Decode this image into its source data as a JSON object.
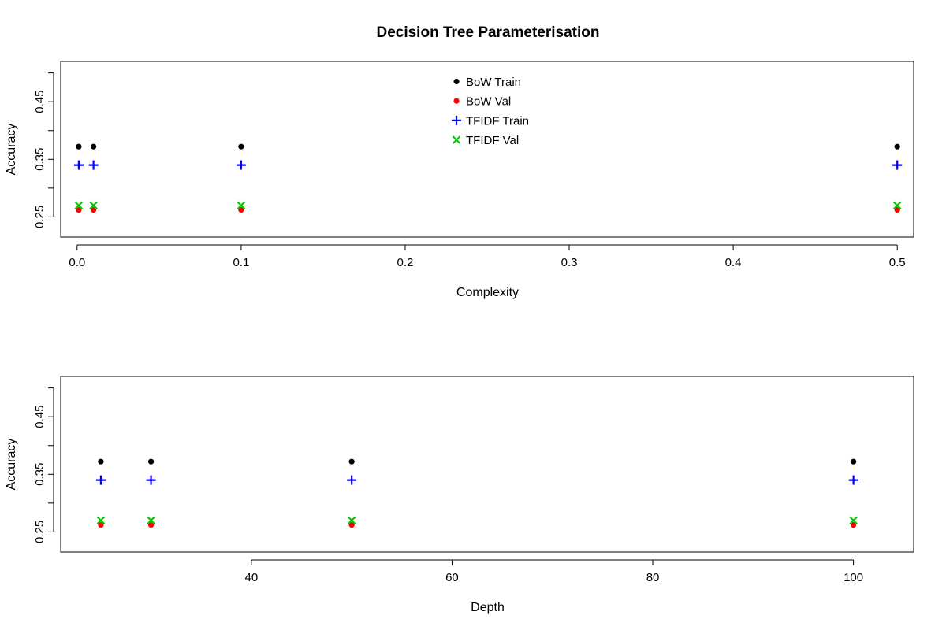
{
  "figure_title": "Decision Tree Parameterisation",
  "chart_data": [
    {
      "type": "scatter",
      "xlabel": "Complexity",
      "ylabel": "Accuracy",
      "xlim": [
        -0.01,
        0.51
      ],
      "ylim": [
        0.215,
        0.52
      ],
      "xticks": [
        0.0,
        0.1,
        0.2,
        0.3,
        0.4,
        0.5
      ],
      "xtick_labels": [
        "0.0",
        "0.1",
        "0.2",
        "0.3",
        "0.4",
        "0.5"
      ],
      "yticks": [
        0.25,
        0.3,
        0.35,
        0.4,
        0.45,
        0.5
      ],
      "ytick_labels": [
        "0.25",
        "",
        "0.35",
        "",
        "0.45",
        ""
      ],
      "legend": "top-center",
      "series": [
        {
          "name": "BoW Train",
          "marker": "dot",
          "color": "#000000",
          "x": [
            0.001,
            0.01,
            0.1,
            0.5
          ],
          "y": [
            0.372,
            0.372,
            0.372,
            0.372
          ]
        },
        {
          "name": "BoW Val",
          "marker": "dot",
          "color": "#ff0000",
          "x": [
            0.001,
            0.01,
            0.1,
            0.5
          ],
          "y": [
            0.262,
            0.262,
            0.262,
            0.262
          ]
        },
        {
          "name": "TFIDF Train",
          "marker": "plus",
          "color": "#0000ff",
          "x": [
            0.001,
            0.01,
            0.1,
            0.5
          ],
          "y": [
            0.34,
            0.34,
            0.34,
            0.34
          ]
        },
        {
          "name": "TFIDF Val",
          "marker": "cross",
          "color": "#00cc00",
          "x": [
            0.001,
            0.01,
            0.1,
            0.5
          ],
          "y": [
            0.27,
            0.27,
            0.27,
            0.27
          ]
        }
      ]
    },
    {
      "type": "scatter",
      "xlabel": "Depth",
      "ylabel": "Accuracy",
      "xlim": [
        21,
        106
      ],
      "ylim": [
        0.215,
        0.52
      ],
      "xticks": [
        40,
        60,
        80,
        100
      ],
      "xtick_labels": [
        "40",
        "60",
        "80",
        "100"
      ],
      "yticks": [
        0.25,
        0.3,
        0.35,
        0.4,
        0.45,
        0.5
      ],
      "ytick_labels": [
        "0.25",
        "",
        "0.35",
        "",
        "0.45",
        ""
      ],
      "legend": "none",
      "series": [
        {
          "name": "BoW Train",
          "marker": "dot",
          "color": "#000000",
          "x": [
            25,
            30,
            50,
            100
          ],
          "y": [
            0.372,
            0.372,
            0.372,
            0.372
          ]
        },
        {
          "name": "BoW Val",
          "marker": "dot",
          "color": "#ff0000",
          "x": [
            25,
            30,
            50,
            100
          ],
          "y": [
            0.262,
            0.262,
            0.262,
            0.262
          ]
        },
        {
          "name": "TFIDF Train",
          "marker": "plus",
          "color": "#0000ff",
          "x": [
            25,
            30,
            50,
            100
          ],
          "y": [
            0.34,
            0.34,
            0.34,
            0.34
          ]
        },
        {
          "name": "TFIDF Val",
          "marker": "cross",
          "color": "#00cc00",
          "x": [
            25,
            30,
            50,
            100
          ],
          "y": [
            0.27,
            0.27,
            0.27,
            0.27
          ]
        }
      ]
    }
  ]
}
